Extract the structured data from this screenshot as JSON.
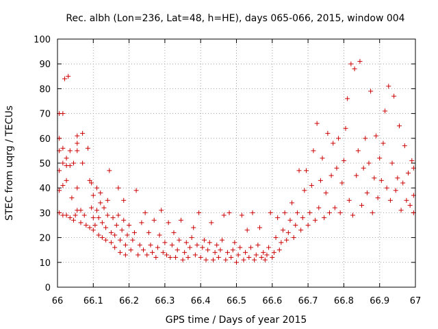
{
  "chart_data": {
    "type": "scatter",
    "title": "Rec. albh (Lon=236, Lat=48, h=HE), days 065-066, 2015, window 004",
    "xlabel": "GPS time / Days of year 2015",
    "ylabel": "STEC from uqrg / TECUs",
    "xlim": [
      66,
      67
    ],
    "ylim": [
      0,
      100
    ],
    "xticks": [
      "66",
      "66.1",
      "66.2",
      "66.3",
      "66.4",
      "66.5",
      "66.6",
      "66.7",
      "66.8",
      "66.9",
      "67"
    ],
    "yticks": [
      "0",
      "10",
      "20",
      "30",
      "40",
      "50",
      "60",
      "70",
      "80",
      "90",
      "100"
    ],
    "grid": true,
    "marker": "plus",
    "color": "#cc0000",
    "series": [
      {
        "points": [
          [
            66.005,
            30
          ],
          [
            66.005,
            39
          ],
          [
            66.005,
            47
          ],
          [
            66.005,
            55
          ],
          [
            66.005,
            60
          ],
          [
            66.005,
            70
          ],
          [
            66.015,
            29
          ],
          [
            66.015,
            41
          ],
          [
            66.015,
            50
          ],
          [
            66.015,
            56
          ],
          [
            66.015,
            70
          ],
          [
            66.02,
            84
          ],
          [
            66.03,
            85
          ],
          [
            66.025,
            29
          ],
          [
            66.025,
            43
          ],
          [
            66.025,
            49
          ],
          [
            66.025,
            52
          ],
          [
            66.035,
            28
          ],
          [
            66.035,
            49
          ],
          [
            66.035,
            55
          ],
          [
            66.04,
            36
          ],
          [
            66.045,
            27
          ],
          [
            66.045,
            50
          ],
          [
            66.05,
            29
          ],
          [
            66.055,
            31
          ],
          [
            66.055,
            40
          ],
          [
            66.055,
            55
          ],
          [
            66.055,
            58
          ],
          [
            66.055,
            61
          ],
          [
            66.065,
            26
          ],
          [
            66.065,
            31
          ],
          [
            66.07,
            50
          ],
          [
            66.07,
            62
          ],
          [
            66.075,
            29
          ],
          [
            66.08,
            25
          ],
          [
            66.085,
            56
          ],
          [
            66.09,
            24
          ],
          [
            66.09,
            43
          ],
          [
            66.095,
            32
          ],
          [
            66.095,
            42
          ],
          [
            66.1,
            23
          ],
          [
            66.1,
            28
          ],
          [
            66.1,
            37
          ],
          [
            66.105,
            25
          ],
          [
            66.11,
            31
          ],
          [
            66.11,
            40
          ],
          [
            66.115,
            21
          ],
          [
            66.115,
            28
          ],
          [
            66.12,
            34
          ],
          [
            66.12,
            38
          ],
          [
            66.125,
            20
          ],
          [
            66.125,
            26
          ],
          [
            66.13,
            32
          ],
          [
            66.135,
            19
          ],
          [
            66.135,
            24
          ],
          [
            66.14,
            29
          ],
          [
            66.14,
            35
          ],
          [
            66.145,
            47
          ],
          [
            66.15,
            18
          ],
          [
            66.15,
            22
          ],
          [
            66.155,
            28
          ],
          [
            66.16,
            16
          ],
          [
            66.16,
            21
          ],
          [
            66.165,
            25
          ],
          [
            66.17,
            29
          ],
          [
            66.17,
            40
          ],
          [
            66.175,
            14
          ],
          [
            66.175,
            19
          ],
          [
            66.18,
            23
          ],
          [
            66.185,
            27
          ],
          [
            66.185,
            35
          ],
          [
            66.19,
            13
          ],
          [
            66.19,
            17
          ],
          [
            66.195,
            21
          ],
          [
            66.2,
            25
          ],
          [
            66.205,
            15
          ],
          [
            66.21,
            19
          ],
          [
            66.215,
            22
          ],
          [
            66.22,
            39
          ],
          [
            66.225,
            13
          ],
          [
            66.23,
            17
          ],
          [
            66.235,
            26
          ],
          [
            66.24,
            15
          ],
          [
            66.245,
            30
          ],
          [
            66.25,
            13
          ],
          [
            66.255,
            22
          ],
          [
            66.26,
            17
          ],
          [
            66.265,
            14
          ],
          [
            66.27,
            27
          ],
          [
            66.275,
            12
          ],
          [
            66.28,
            16
          ],
          [
            66.285,
            21
          ],
          [
            66.29,
            31
          ],
          [
            66.295,
            14
          ],
          [
            66.3,
            18
          ],
          [
            66.305,
            13
          ],
          [
            66.31,
            26
          ],
          [
            66.315,
            12
          ],
          [
            66.32,
            17
          ],
          [
            66.325,
            22
          ],
          [
            66.33,
            12
          ],
          [
            66.335,
            15
          ],
          [
            66.34,
            19
          ],
          [
            66.345,
            27
          ],
          [
            66.35,
            11
          ],
          [
            66.355,
            14
          ],
          [
            66.36,
            18
          ],
          [
            66.365,
            12
          ],
          [
            66.37,
            16
          ],
          [
            66.375,
            20
          ],
          [
            66.38,
            24
          ],
          [
            66.385,
            13
          ],
          [
            66.39,
            17
          ],
          [
            66.395,
            30
          ],
          [
            66.4,
            12
          ],
          [
            66.405,
            16
          ],
          [
            66.41,
            19
          ],
          [
            66.415,
            11
          ],
          [
            66.42,
            15
          ],
          [
            66.425,
            18
          ],
          [
            66.43,
            26
          ],
          [
            66.435,
            11
          ],
          [
            66.44,
            14
          ],
          [
            66.445,
            17
          ],
          [
            66.45,
            12
          ],
          [
            66.455,
            15
          ],
          [
            66.46,
            19
          ],
          [
            66.465,
            29
          ],
          [
            66.47,
            11
          ],
          [
            66.475,
            14
          ],
          [
            66.48,
            30
          ],
          [
            66.485,
            12
          ],
          [
            66.49,
            15
          ],
          [
            66.495,
            18
          ],
          [
            66.5,
            10
          ],
          [
            66.505,
            13
          ],
          [
            66.51,
            16
          ],
          [
            66.515,
            29
          ],
          [
            66.52,
            11
          ],
          [
            66.525,
            14
          ],
          [
            66.53,
            23
          ],
          [
            66.535,
            12
          ],
          [
            66.54,
            16
          ],
          [
            66.545,
            30
          ],
          [
            66.55,
            11
          ],
          [
            66.555,
            13
          ],
          [
            66.56,
            17
          ],
          [
            66.565,
            24
          ],
          [
            66.57,
            12
          ],
          [
            66.575,
            14
          ],
          [
            66.58,
            11
          ],
          [
            66.585,
            13
          ],
          [
            66.59,
            16
          ],
          [
            66.595,
            30
          ],
          [
            66.6,
            12
          ],
          [
            66.605,
            14
          ],
          [
            66.61,
            20
          ],
          [
            66.615,
            28
          ],
          [
            66.62,
            15
          ],
          [
            66.625,
            18
          ],
          [
            66.63,
            23
          ],
          [
            66.635,
            30
          ],
          [
            66.64,
            19
          ],
          [
            66.645,
            22
          ],
          [
            66.65,
            27
          ],
          [
            66.655,
            34
          ],
          [
            66.66,
            20
          ],
          [
            66.665,
            25
          ],
          [
            66.67,
            30
          ],
          [
            66.675,
            47
          ],
          [
            66.68,
            23
          ],
          [
            66.685,
            28
          ],
          [
            66.69,
            39
          ],
          [
            66.695,
            47
          ],
          [
            66.7,
            25
          ],
          [
            66.705,
            30
          ],
          [
            66.71,
            41
          ],
          [
            66.715,
            55
          ],
          [
            66.72,
            27
          ],
          [
            66.725,
            66
          ],
          [
            66.73,
            32
          ],
          [
            66.735,
            43
          ],
          [
            66.74,
            52
          ],
          [
            66.745,
            28
          ],
          [
            66.75,
            38
          ],
          [
            66.755,
            62
          ],
          [
            66.76,
            30
          ],
          [
            66.765,
            45
          ],
          [
            66.77,
            58
          ],
          [
            66.775,
            32
          ],
          [
            66.78,
            48
          ],
          [
            66.785,
            60
          ],
          [
            66.79,
            30
          ],
          [
            66.795,
            42
          ],
          [
            66.8,
            51
          ],
          [
            66.805,
            64
          ],
          [
            66.81,
            76
          ],
          [
            66.815,
            35
          ],
          [
            66.82,
            90
          ],
          [
            66.825,
            29
          ],
          [
            66.83,
            88
          ],
          [
            66.835,
            45
          ],
          [
            66.84,
            55
          ],
          [
            66.845,
            91
          ],
          [
            66.85,
            33
          ],
          [
            66.855,
            48
          ],
          [
            66.86,
            60
          ],
          [
            66.865,
            38
          ],
          [
            66.87,
            50
          ],
          [
            66.875,
            79
          ],
          [
            66.88,
            30
          ],
          [
            66.885,
            44
          ],
          [
            66.89,
            61
          ],
          [
            66.895,
            36
          ],
          [
            66.9,
            52
          ],
          [
            66.905,
            43
          ],
          [
            66.91,
            58
          ],
          [
            66.915,
            71
          ],
          [
            66.92,
            40
          ],
          [
            66.925,
            81
          ],
          [
            66.93,
            35
          ],
          [
            66.935,
            50
          ],
          [
            66.94,
            77
          ],
          [
            66.945,
            39
          ],
          [
            66.95,
            44
          ],
          [
            66.955,
            65
          ],
          [
            66.96,
            31
          ],
          [
            66.965,
            42
          ],
          [
            66.97,
            57
          ],
          [
            66.975,
            35
          ],
          [
            66.98,
            46
          ],
          [
            66.985,
            33
          ],
          [
            66.99,
            51
          ],
          [
            66.995,
            30
          ],
          [
            66.995,
            37
          ],
          [
            66.995,
            48
          ]
        ]
      }
    ]
  }
}
